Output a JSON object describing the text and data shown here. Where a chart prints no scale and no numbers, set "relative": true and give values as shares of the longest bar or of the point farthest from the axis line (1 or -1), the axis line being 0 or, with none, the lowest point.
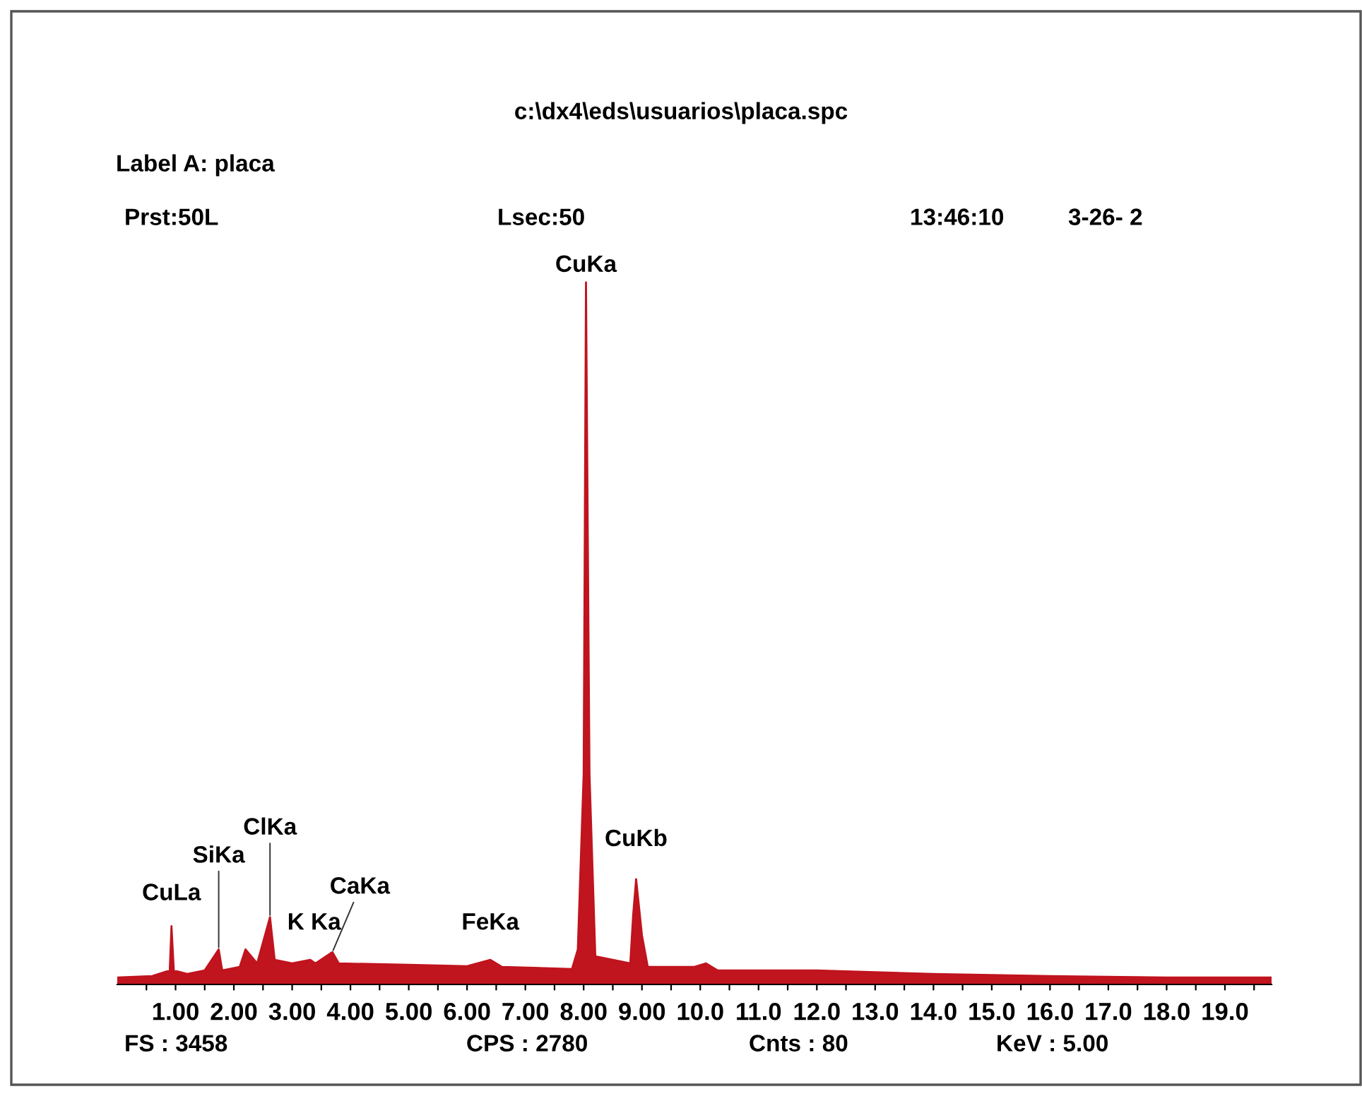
{
  "chart_data": {
    "type": "area",
    "relative": true,
    "title": "c:\\dx4\\eds\\usuarios\\placa.spc",
    "x": [
      0.0,
      0.6,
      0.9,
      0.93,
      0.97,
      1.2,
      1.5,
      1.74,
      1.8,
      2.1,
      2.2,
      2.4,
      2.62,
      2.7,
      3.0,
      3.31,
      3.4,
      3.69,
      3.8,
      5.0,
      6.0,
      6.4,
      6.6,
      7.8,
      7.9,
      8.0,
      8.04,
      8.1,
      8.2,
      8.8,
      8.85,
      8.9,
      9.0,
      9.1,
      9.9,
      10.1,
      10.3,
      12.0,
      14.0,
      16.0,
      18.0,
      19.8
    ],
    "series": [
      {
        "color": "#c0141e",
        "values": [
          0.01,
          0.012,
          0.02,
          0.083,
          0.02,
          0.015,
          0.02,
          0.05,
          0.02,
          0.025,
          0.05,
          0.03,
          0.096,
          0.035,
          0.03,
          0.035,
          0.03,
          0.046,
          0.03,
          0.028,
          0.026,
          0.035,
          0.025,
          0.022,
          0.05,
          0.3,
          1.0,
          0.3,
          0.04,
          0.03,
          0.1,
          0.15,
          0.07,
          0.025,
          0.025,
          0.03,
          0.02,
          0.02,
          0.015,
          0.012,
          0.01,
          0.01
        ]
      }
    ],
    "xlim": [
      0,
      19.8
    ],
    "xticks": [
      {
        "value": 0.5,
        "label": null
      },
      {
        "value": 1,
        "label": "1.00"
      },
      {
        "value": 1.5,
        "label": null
      },
      {
        "value": 2,
        "label": "2.00"
      },
      {
        "value": 2.5,
        "label": null
      },
      {
        "value": 3,
        "label": "3.00"
      },
      {
        "value": 3.5,
        "label": null
      },
      {
        "value": 4,
        "label": "4.00"
      },
      {
        "value": 4.5,
        "label": null
      },
      {
        "value": 5,
        "label": "5.00"
      },
      {
        "value": 5.5,
        "label": null
      },
      {
        "value": 6,
        "label": "6.00"
      },
      {
        "value": 6.5,
        "label": null
      },
      {
        "value": 7,
        "label": "7.00"
      },
      {
        "value": 7.5,
        "label": null
      },
      {
        "value": 8,
        "label": "8.00"
      },
      {
        "value": 8.5,
        "label": null
      },
      {
        "value": 9,
        "label": "9.00"
      },
      {
        "value": 9.5,
        "label": null
      },
      {
        "value": 10,
        "label": "10.0"
      },
      {
        "value": 10.5,
        "label": null
      },
      {
        "value": 11,
        "label": "11.0"
      },
      {
        "value": 11.5,
        "label": null
      },
      {
        "value": 12,
        "label": "12.0"
      },
      {
        "value": 12.5,
        "label": null
      },
      {
        "value": 13,
        "label": "13.0"
      },
      {
        "value": 13.5,
        "label": null
      },
      {
        "value": 14,
        "label": "14.0"
      },
      {
        "value": 14.5,
        "label": null
      },
      {
        "value": 15,
        "label": "15.0"
      },
      {
        "value": 15.5,
        "label": null
      },
      {
        "value": 16,
        "label": "16.0"
      },
      {
        "value": 16.5,
        "label": null
      },
      {
        "value": 17,
        "label": "17.0"
      },
      {
        "value": 17.5,
        "label": null
      },
      {
        "value": 18,
        "label": "18.0"
      },
      {
        "value": 18.5,
        "label": null
      },
      {
        "value": 19,
        "label": "19.0"
      },
      {
        "value": 19.5,
        "label": null
      }
    ],
    "annotations": [
      "Label A: placa",
      "Prst:50L",
      "Lsec:50",
      "13:46:10",
      "3-26- 2",
      "FS : 3458",
      "CPS : 2780",
      "Cnts : 80",
      "KeV : 5.00",
      {
        "text": "CuLa",
        "x": 0.93,
        "y": 0.083
      },
      {
        "text": "SiKa",
        "x": 1.74,
        "y": 0.05
      },
      {
        "text": "ClKa",
        "x": 2.62,
        "y": 0.096
      },
      {
        "text": "K Ka",
        "x": 3.31,
        "y": 0.035
      },
      {
        "text": "CaKa",
        "x": 3.69,
        "y": 0.046
      },
      {
        "text": "FeKa",
        "x": 6.4,
        "y": 0.035
      },
      {
        "text": "CuKa",
        "x": 8.04,
        "y": 1.0
      },
      {
        "text": "CuKb",
        "x": 8.9,
        "y": 0.15
      }
    ],
    "grid": false,
    "legend": false
  }
}
